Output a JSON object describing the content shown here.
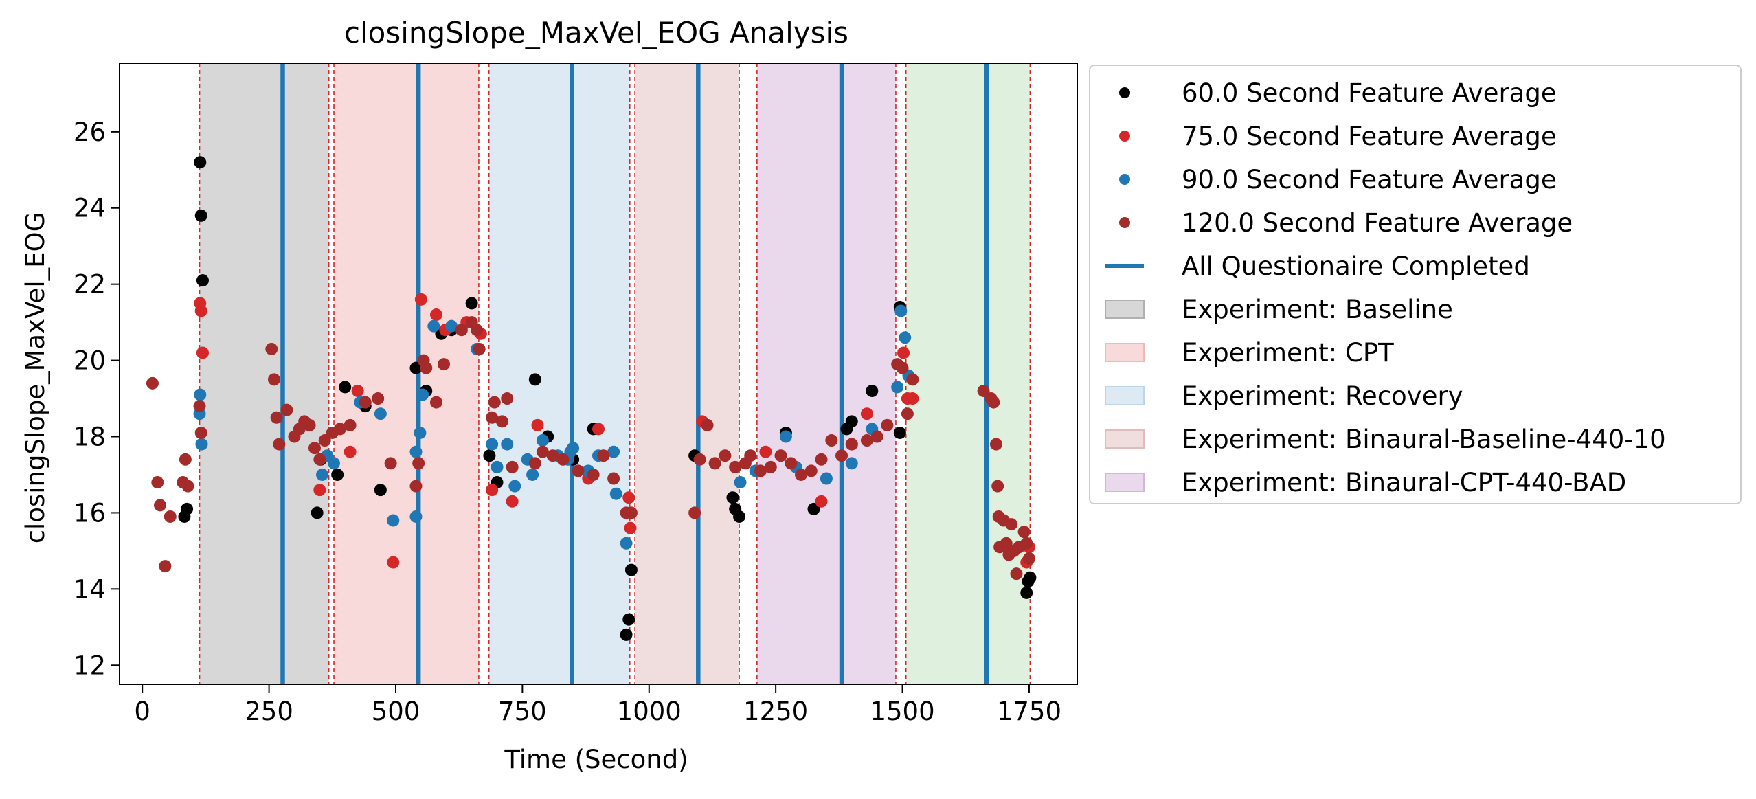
{
  "chart_data": {
    "type": "scatter",
    "title": "closingSlope_MaxVel_EOG Analysis",
    "xlabel": "Time (Second)",
    "ylabel": "closingSlope_MaxVel_EOG",
    "xlim": [
      -45,
      1845
    ],
    "ylim": [
      11.5,
      27.8
    ],
    "xticks": [
      0,
      250,
      500,
      750,
      1000,
      1250,
      1500,
      1750
    ],
    "yticks": [
      12,
      14,
      16,
      18,
      20,
      22,
      24,
      26
    ],
    "legend_position": "outside right, top",
    "experiments": [
      {
        "name": "Experiment: Baseline",
        "start": 113,
        "end": 368,
        "color": "#b0b0b0",
        "in_legend": true
      },
      {
        "name": "Experiment: CPT",
        "start": 378,
        "end": 664,
        "color": "#f4b6b8",
        "in_legend": true
      },
      {
        "name": "Experiment: Recovery",
        "start": 684,
        "end": 962,
        "color": "#bcd6ea",
        "in_legend": true
      },
      {
        "name": "Experiment: Binaural-Baseline-440-10",
        "start": 972,
        "end": 1178,
        "color": "#e2bcbc",
        "in_legend": true
      },
      {
        "name": "Experiment: Binaural-CPT-440-BAD",
        "start": 1213,
        "end": 1487,
        "color": "#d6b4dc",
        "in_legend": true
      },
      {
        "name": "",
        "start": 1507,
        "end": 1752,
        "color": "#bfe3bd",
        "in_legend": false
      }
    ],
    "boundary_lines": [
      113,
      368,
      378,
      664,
      684,
      962,
      972,
      1178,
      1213,
      1487,
      1507,
      1752
    ],
    "questionnaire_lines": {
      "name": "All Questionaire Completed",
      "color": "#1f77b4",
      "x": [
        277,
        545,
        848,
        1097,
        1380,
        1666
      ]
    },
    "series": [
      {
        "name": "60.0 Second Feature Average",
        "color": "#000000",
        "points": [
          [
            83,
            15.9
          ],
          [
            88,
            16.1
          ],
          [
            114,
            25.2
          ],
          [
            116,
            23.8
          ],
          [
            119,
            22.1
          ],
          [
            345,
            16.0
          ],
          [
            352,
            17.4
          ],
          [
            385,
            17.0
          ],
          [
            400,
            19.3
          ],
          [
            440,
            18.8
          ],
          [
            470,
            16.6
          ],
          [
            540,
            19.8
          ],
          [
            560,
            19.2
          ],
          [
            590,
            20.7
          ],
          [
            610,
            20.8
          ],
          [
            650,
            21.5
          ],
          [
            685,
            17.5
          ],
          [
            700,
            16.8
          ],
          [
            775,
            19.5
          ],
          [
            800,
            18.0
          ],
          [
            850,
            17.4
          ],
          [
            890,
            18.2
          ],
          [
            955,
            12.8
          ],
          [
            960,
            13.2
          ],
          [
            965,
            14.5
          ],
          [
            1090,
            17.5
          ],
          [
            1165,
            16.4
          ],
          [
            1170,
            16.1
          ],
          [
            1178,
            15.9
          ],
          [
            1270,
            18.1
          ],
          [
            1325,
            16.1
          ],
          [
            1390,
            18.2
          ],
          [
            1400,
            18.4
          ],
          [
            1440,
            19.2
          ],
          [
            1495,
            18.1
          ],
          [
            1495,
            21.4
          ],
          [
            1745,
            13.9
          ],
          [
            1748,
            14.2
          ],
          [
            1752,
            14.3
          ]
        ]
      },
      {
        "name": "75.0 Second Feature Average",
        "color": "#d62728",
        "points": [
          [
            114,
            21.5
          ],
          [
            116,
            21.3
          ],
          [
            119,
            20.2
          ],
          [
            350,
            16.6
          ],
          [
            410,
            17.6
          ],
          [
            425,
            19.2
          ],
          [
            495,
            14.7
          ],
          [
            550,
            21.6
          ],
          [
            580,
            21.2
          ],
          [
            598,
            20.8
          ],
          [
            640,
            21.0
          ],
          [
            668,
            20.7
          ],
          [
            690,
            16.6
          ],
          [
            730,
            16.3
          ],
          [
            780,
            18.3
          ],
          [
            880,
            16.9
          ],
          [
            900,
            18.2
          ],
          [
            960,
            16.4
          ],
          [
            963,
            15.6
          ],
          [
            1105,
            18.4
          ],
          [
            1230,
            17.6
          ],
          [
            1340,
            16.3
          ],
          [
            1400,
            17.8
          ],
          [
            1430,
            18.6
          ],
          [
            1502,
            20.2
          ],
          [
            1510,
            19.0
          ],
          [
            1520,
            19.0
          ],
          [
            1745,
            14.7
          ],
          [
            1750,
            15.1
          ]
        ]
      },
      {
        "name": "90.0 Second Feature Average",
        "color": "#1f77b4",
        "points": [
          [
            113,
            18.6
          ],
          [
            114,
            19.1
          ],
          [
            117,
            17.8
          ],
          [
            355,
            17.0
          ],
          [
            365,
            17.5
          ],
          [
            378,
            17.3
          ],
          [
            430,
            18.9
          ],
          [
            470,
            18.6
          ],
          [
            495,
            15.8
          ],
          [
            540,
            15.9
          ],
          [
            540,
            17.6
          ],
          [
            548,
            18.1
          ],
          [
            553,
            19.1
          ],
          [
            575,
            20.9
          ],
          [
            610,
            20.9
          ],
          [
            660,
            20.3
          ],
          [
            690,
            17.8
          ],
          [
            700,
            17.2
          ],
          [
            720,
            17.8
          ],
          [
            735,
            16.7
          ],
          [
            760,
            17.4
          ],
          [
            770,
            17.0
          ],
          [
            790,
            17.9
          ],
          [
            820,
            17.5
          ],
          [
            840,
            17.4
          ],
          [
            845,
            17.6
          ],
          [
            850,
            17.7
          ],
          [
            880,
            17.1
          ],
          [
            900,
            17.5
          ],
          [
            930,
            17.6
          ],
          [
            935,
            16.5
          ],
          [
            955,
            15.2
          ],
          [
            1180,
            16.8
          ],
          [
            1210,
            17.1
          ],
          [
            1270,
            18.0
          ],
          [
            1290,
            17.2
          ],
          [
            1350,
            16.9
          ],
          [
            1400,
            17.3
          ],
          [
            1440,
            18.2
          ],
          [
            1490,
            19.3
          ],
          [
            1497,
            21.3
          ],
          [
            1505,
            20.6
          ],
          [
            1512,
            19.6
          ]
        ]
      },
      {
        "name": "120.0 Second Feature Average",
        "color": "#a52a2a",
        "points": [
          [
            20,
            19.4
          ],
          [
            30,
            16.8
          ],
          [
            35,
            16.2
          ],
          [
            45,
            14.6
          ],
          [
            55,
            15.9
          ],
          [
            80,
            16.8
          ],
          [
            85,
            17.4
          ],
          [
            90,
            16.7
          ],
          [
            113,
            18.8
          ],
          [
            116,
            18.1
          ],
          [
            255,
            20.3
          ],
          [
            260,
            19.5
          ],
          [
            265,
            18.5
          ],
          [
            270,
            17.8
          ],
          [
            285,
            18.7
          ],
          [
            300,
            18.0
          ],
          [
            310,
            18.2
          ],
          [
            320,
            18.4
          ],
          [
            330,
            18.3
          ],
          [
            340,
            17.7
          ],
          [
            350,
            17.4
          ],
          [
            360,
            17.9
          ],
          [
            375,
            18.1
          ],
          [
            390,
            18.2
          ],
          [
            410,
            18.3
          ],
          [
            440,
            18.9
          ],
          [
            465,
            19.0
          ],
          [
            490,
            17.3
          ],
          [
            540,
            16.7
          ],
          [
            545,
            17.3
          ],
          [
            555,
            20.0
          ],
          [
            560,
            19.8
          ],
          [
            580,
            18.9
          ],
          [
            595,
            19.9
          ],
          [
            630,
            20.8
          ],
          [
            650,
            21.0
          ],
          [
            660,
            20.8
          ],
          [
            665,
            20.3
          ],
          [
            690,
            18.5
          ],
          [
            695,
            18.9
          ],
          [
            710,
            18.4
          ],
          [
            720,
            19.0
          ],
          [
            730,
            17.2
          ],
          [
            775,
            17.3
          ],
          [
            790,
            17.6
          ],
          [
            810,
            17.5
          ],
          [
            830,
            17.4
          ],
          [
            860,
            17.1
          ],
          [
            890,
            17.0
          ],
          [
            910,
            17.5
          ],
          [
            930,
            16.9
          ],
          [
            955,
            16.0
          ],
          [
            965,
            16.0
          ],
          [
            1090,
            16.0
          ],
          [
            1100,
            17.4
          ],
          [
            1115,
            18.3
          ],
          [
            1130,
            17.3
          ],
          [
            1150,
            17.5
          ],
          [
            1170,
            17.2
          ],
          [
            1190,
            17.3
          ],
          [
            1200,
            17.5
          ],
          [
            1220,
            17.1
          ],
          [
            1240,
            17.2
          ],
          [
            1260,
            17.5
          ],
          [
            1280,
            17.3
          ],
          [
            1300,
            17.0
          ],
          [
            1320,
            17.1
          ],
          [
            1340,
            17.4
          ],
          [
            1360,
            17.9
          ],
          [
            1380,
            17.5
          ],
          [
            1400,
            17.8
          ],
          [
            1430,
            17.9
          ],
          [
            1450,
            18.0
          ],
          [
            1470,
            18.3
          ],
          [
            1490,
            19.9
          ],
          [
            1500,
            19.8
          ],
          [
            1510,
            18.6
          ],
          [
            1520,
            19.5
          ],
          [
            1660,
            19.2
          ],
          [
            1675,
            19.0
          ],
          [
            1680,
            18.9
          ],
          [
            1685,
            17.8
          ],
          [
            1688,
            16.7
          ],
          [
            1690,
            15.9
          ],
          [
            1692,
            15.1
          ],
          [
            1700,
            15.8
          ],
          [
            1705,
            15.2
          ],
          [
            1710,
            14.9
          ],
          [
            1715,
            15.7
          ],
          [
            1720,
            15.0
          ],
          [
            1725,
            14.4
          ],
          [
            1730,
            15.1
          ],
          [
            1740,
            15.5
          ],
          [
            1745,
            15.2
          ],
          [
            1750,
            14.8
          ]
        ]
      }
    ]
  },
  "legend": {
    "items": [
      {
        "label": "60.0 Second Feature Average",
        "kind": "dot",
        "color": "#000000"
      },
      {
        "label": "75.0 Second Feature Average",
        "kind": "dot",
        "color": "#d62728"
      },
      {
        "label": "90.0 Second Feature Average",
        "kind": "dot",
        "color": "#1f77b4"
      },
      {
        "label": "120.0 Second Feature Average",
        "kind": "dot",
        "color": "#a52a2a"
      },
      {
        "label": "All Questionaire Completed",
        "kind": "line",
        "color": "#1f77b4"
      },
      {
        "label": "Experiment: Baseline",
        "kind": "patch",
        "color": "#b0b0b0"
      },
      {
        "label": "Experiment: CPT",
        "kind": "patch",
        "color": "#f4b6b8"
      },
      {
        "label": "Experiment: Recovery",
        "kind": "patch",
        "color": "#bcd6ea"
      },
      {
        "label": "Experiment: Binaural-Baseline-440-10",
        "kind": "patch",
        "color": "#e2bcbc"
      },
      {
        "label": "Experiment: Binaural-CPT-440-BAD",
        "kind": "patch",
        "color": "#d6b4dc"
      }
    ]
  }
}
